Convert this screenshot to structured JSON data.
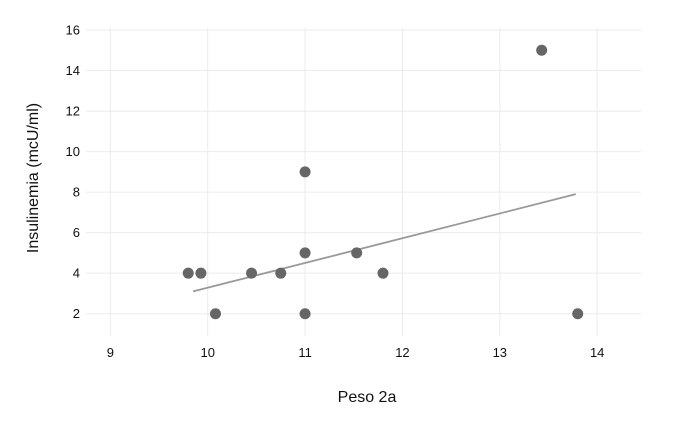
{
  "chart_data": {
    "type": "scatter",
    "title": "",
    "xlabel": "Peso 2a",
    "ylabel": "Insulinemia (mcU/ml)",
    "xlim": [
      8.75,
      14.45
    ],
    "ylim": [
      0.9,
      16.1
    ],
    "xticks": [
      "9",
      "10",
      "11",
      "12",
      "13",
      "14"
    ],
    "yticks": [
      "2",
      "4",
      "6",
      "8",
      "10",
      "12",
      "14",
      "16"
    ],
    "grid": true,
    "legend": "none",
    "point_color": "#666666",
    "trend_color": "#999999",
    "grid_color": "#ebebeb",
    "points": [
      {
        "x": 9.8,
        "y": 4
      },
      {
        "x": 9.93,
        "y": 4
      },
      {
        "x": 10.08,
        "y": 2
      },
      {
        "x": 10.45,
        "y": 4
      },
      {
        "x": 10.75,
        "y": 4
      },
      {
        "x": 11.0,
        "y": 9
      },
      {
        "x": 11.0,
        "y": 5
      },
      {
        "x": 11.0,
        "y": 2
      },
      {
        "x": 11.53,
        "y": 5
      },
      {
        "x": 11.8,
        "y": 4
      },
      {
        "x": 13.43,
        "y": 15
      },
      {
        "x": 13.8,
        "y": 2
      }
    ],
    "trendline": {
      "x": [
        9.85,
        13.78
      ],
      "y": [
        3.1,
        7.9
      ]
    }
  }
}
